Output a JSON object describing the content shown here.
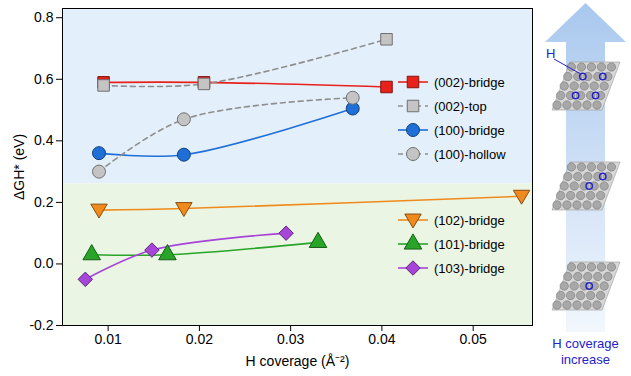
{
  "chart_data": {
    "type": "line",
    "x_label": "H coverage (Å⁻²)",
    "y_label": "ΔGH* (eV)",
    "xlim": [
      0.005,
      0.0565
    ],
    "ylim": [
      -0.2,
      0.83
    ],
    "xticks": [
      0.01,
      0.02,
      0.03,
      0.04,
      0.05
    ],
    "yticks": [
      -0.2,
      {
        "value": 0,
        "label": "0.0"
      },
      0.2,
      0.4,
      0.6,
      0.8
    ],
    "grid": false,
    "legend": "right",
    "shaded_regions": [
      {
        "from": 0.26,
        "to": 0.83,
        "color": "#e3f0fb"
      },
      {
        "from": -0.2,
        "to": 0.26,
        "color": "#eaf5e3"
      }
    ],
    "series": [
      {
        "name": "(002)-bridge",
        "color": "#e8211b",
        "marker": "square",
        "line_style": "solid",
        "x": [
          0.0095,
          0.0205,
          0.0405
        ],
        "values": [
          0.59,
          0.59,
          0.575
        ]
      },
      {
        "name": "(002)-top",
        "color": "#c4c4c4",
        "marker": "square",
        "line_style": "dashed",
        "x": [
          0.0095,
          0.0205,
          0.0405
        ],
        "values": [
          0.58,
          0.585,
          0.73
        ]
      },
      {
        "name": "(100)-bridge",
        "color": "#1f6fd8",
        "marker": "circle",
        "line_style": "solid",
        "x": [
          0.009,
          0.0183,
          0.0368
        ],
        "values": [
          0.36,
          0.355,
          0.505
        ]
      },
      {
        "name": "(100)-hollow",
        "color": "#c4c4c4",
        "marker": "circle",
        "line_style": "dashed",
        "x": [
          0.009,
          0.0183,
          0.0368
        ],
        "values": [
          0.3,
          0.47,
          0.54
        ]
      },
      {
        "name": "(102)-bridge",
        "color": "#f08a1c",
        "marker": "triangle-down",
        "line_style": "solid",
        "x": [
          0.009,
          0.0183,
          0.0553
        ],
        "values": [
          0.175,
          0.18,
          0.22
        ]
      },
      {
        "name": "(101)-bridge",
        "color": "#28a428",
        "marker": "triangle-up",
        "line_style": "solid",
        "x": [
          0.0082,
          0.0165,
          0.033
        ],
        "values": [
          0.03,
          0.03,
          0.07
        ]
      },
      {
        "name": "(103)-bridge",
        "color": "#a745d8",
        "marker": "diamond",
        "line_style": "solid",
        "x": [
          0.0075,
          0.0148,
          0.0295
        ],
        "values": [
          -0.05,
          0.045,
          0.1
        ]
      }
    ],
    "annotations": [
      "H",
      "H coverage increase"
    ]
  }
}
